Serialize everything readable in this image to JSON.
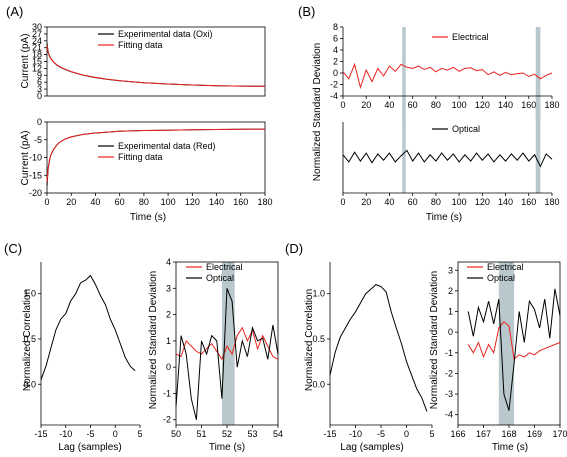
{
  "figure": {
    "panels": [
      {
        "id": "A",
        "label": "(A)",
        "xlabel": "Time (s)",
        "xticks": [
          "0",
          "20",
          "40",
          "60",
          "80",
          "100",
          "120",
          "140",
          "160",
          "180"
        ],
        "subplots": [
          {
            "ylabel": "Current (pA)",
            "yticks": [
              "0",
              "3",
              "6",
              "9",
              "12",
              "15",
              "18",
              "21",
              "24",
              "27",
              "30"
            ],
            "legend": [
              "Experimental data (Oxi)",
              "Fitting data"
            ]
          },
          {
            "ylabel": "Current (pA)",
            "yticks": [
              "-20",
              "-15",
              "-10",
              "-5",
              "0"
            ],
            "legend": [
              "Experimental data (Red)",
              "Fitting data"
            ]
          }
        ]
      },
      {
        "id": "B",
        "label": "(B)",
        "ylabel": "Normalized Standard Deviation",
        "xlabel": "Time (s)",
        "xticks": [
          "0",
          "20",
          "40",
          "60",
          "80",
          "100",
          "120",
          "140",
          "160",
          "180"
        ],
        "subplots": [
          {
            "yticks": [
              "-4",
              "-2",
              "0",
              "2",
              "4",
              "6",
              "8"
            ],
            "legend": [
              "Electrical"
            ]
          },
          {
            "legend": [
              "Optical"
            ]
          }
        ]
      },
      {
        "id": "C",
        "label": "(C)",
        "left": {
          "ylabel": "Normalized Correlation",
          "xlabel": "Lag (samples)",
          "xticks": [
            "-15",
            "-10",
            "-5",
            "0",
            "5"
          ],
          "yticks": [
            "0.0",
            "0.5",
            "1.0"
          ]
        },
        "right": {
          "ylabel": "Normalized Standard Deviation",
          "xlabel": "Time (s)",
          "xticks": [
            "50",
            "51",
            "52",
            "53",
            "54"
          ],
          "yticks": [
            "-2",
            "-1",
            "0",
            "1",
            "2",
            "3",
            "4"
          ],
          "legend": [
            "Electrical",
            "Optical"
          ]
        }
      },
      {
        "id": "D",
        "label": "(D)",
        "left": {
          "ylabel": "Normalized Correlation",
          "xlabel": "Lag (samples)",
          "xticks": [
            "-15",
            "-10",
            "-5",
            "0",
            "5"
          ],
          "yticks": [
            "0.0",
            "0.5",
            "1.0"
          ]
        },
        "right": {
          "ylabel": "Normalized Standard Deviation",
          "xlabel": "Time (s)",
          "xticks": [
            "166",
            "167",
            "168",
            "169",
            "170"
          ],
          "yticks": [
            "-4",
            "-3",
            "-2",
            "-1",
            "0",
            "1",
            "2",
            "3"
          ],
          "legend": [
            "Electrical",
            "Optical"
          ]
        }
      }
    ]
  },
  "colors": {
    "experimental": "#000000",
    "fitting": "#e8231f",
    "electrical": "#e8231f",
    "optical": "#000000",
    "highlight": "#b8c8cc"
  },
  "chart_data": [
    {
      "type": "line",
      "panel": "A-top",
      "xlabel": "Time (s)",
      "ylabel": "Current (pA)",
      "xlim": [
        0,
        180
      ],
      "ylim": [
        0,
        30
      ],
      "series": [
        {
          "name": "Experimental data (Oxi)",
          "x": [
            0,
            1,
            2,
            3,
            5,
            8,
            10,
            15,
            20,
            30,
            40,
            50,
            60,
            80,
            100,
            120,
            140,
            160,
            180
          ],
          "y": [
            23,
            19,
            17.5,
            16.5,
            15,
            13.5,
            12.8,
            11.5,
            10.5,
            9,
            8,
            7.2,
            6.6,
            5.8,
            5.2,
            4.8,
            4.5,
            4.3,
            4.2
          ]
        },
        {
          "name": "Fitting data",
          "x": [
            0,
            1,
            2,
            3,
            5,
            8,
            10,
            15,
            20,
            30,
            40,
            50,
            60,
            80,
            100,
            120,
            140,
            160,
            180
          ],
          "y": [
            22,
            18.8,
            17.3,
            16.4,
            15,
            13.6,
            12.9,
            11.6,
            10.6,
            9.1,
            8.1,
            7.3,
            6.7,
            5.8,
            5.2,
            4.8,
            4.5,
            4.3,
            4.2
          ]
        }
      ]
    },
    {
      "type": "line",
      "panel": "A-bottom",
      "xlabel": "Time (s)",
      "ylabel": "Current (pA)",
      "xlim": [
        0,
        180
      ],
      "ylim": [
        -20,
        0
      ],
      "series": [
        {
          "name": "Experimental data (Red)",
          "x": [
            0,
            1,
            2,
            3,
            5,
            8,
            10,
            15,
            20,
            30,
            40,
            60,
            80,
            100,
            120,
            140,
            160,
            180
          ],
          "y": [
            -18,
            -13,
            -11,
            -9.5,
            -8,
            -6.5,
            -5.8,
            -4.8,
            -4.2,
            -3.5,
            -3.1,
            -2.6,
            -2.4,
            -2.3,
            -2.2,
            -2.1,
            -2.05,
            -2
          ]
        },
        {
          "name": "Fitting data",
          "x": [
            0,
            1,
            2,
            3,
            5,
            8,
            10,
            15,
            20,
            30,
            40,
            60,
            80,
            100,
            120,
            140,
            160,
            180
          ],
          "y": [
            -17,
            -12.8,
            -10.8,
            -9.4,
            -7.9,
            -6.5,
            -5.8,
            -4.8,
            -4.2,
            -3.5,
            -3.1,
            -2.6,
            -2.4,
            -2.3,
            -2.2,
            -2.1,
            -2.05,
            -2
          ]
        }
      ]
    },
    {
      "type": "line",
      "panel": "B-top",
      "xlabel": "Time (s)",
      "ylabel": "Normalized Standard Deviation",
      "xlim": [
        0,
        180
      ],
      "ylim": [
        -4,
        8
      ],
      "highlight_x": [
        [
          51,
          54
        ],
        [
          166,
          170
        ]
      ],
      "series": [
        {
          "name": "Electrical",
          "x": [
            0,
            5,
            10,
            15,
            20,
            25,
            30,
            35,
            40,
            45,
            50,
            55,
            60,
            65,
            70,
            75,
            80,
            85,
            90,
            95,
            100,
            105,
            110,
            115,
            120,
            125,
            130,
            135,
            140,
            145,
            150,
            155,
            160,
            165,
            170,
            175,
            180
          ],
          "y": [
            0.2,
            -1,
            1.5,
            -2.5,
            0.5,
            -1.5,
            0.8,
            -0.5,
            1.2,
            0.3,
            1.5,
            1,
            0.8,
            1.2,
            0.6,
            1,
            0.2,
            0.8,
            0.5,
            1,
            0.3,
            0.8,
            0.9,
            0.4,
            0.6,
            -0.3,
            0.2,
            -0.4,
            0.1,
            -0.3,
            -0.1,
            0,
            -0.6,
            -0.2,
            -1,
            -0.4,
            0
          ]
        }
      ]
    },
    {
      "type": "line",
      "panel": "B-bottom",
      "xlabel": "Time (s)",
      "xlim": [
        0,
        180
      ],
      "highlight_x": [
        [
          51,
          54
        ],
        [
          166,
          170
        ]
      ],
      "series": [
        {
          "name": "Optical",
          "x": [
            0,
            5,
            10,
            15,
            20,
            25,
            30,
            35,
            40,
            45,
            50,
            55,
            60,
            65,
            70,
            75,
            80,
            85,
            90,
            95,
            100,
            105,
            110,
            115,
            120,
            125,
            130,
            135,
            140,
            145,
            150,
            155,
            160,
            165,
            170,
            175,
            180
          ],
          "y": [
            0.3,
            -0.5,
            0.6,
            -0.4,
            0.5,
            -0.6,
            0.4,
            -0.3,
            0.5,
            -0.5,
            0.2,
            0.8,
            -0.4,
            0.5,
            -0.5,
            0.3,
            -0.4,
            0.5,
            -0.3,
            0.4,
            -0.5,
            0.3,
            -0.4,
            0.5,
            -0.3,
            0.4,
            -0.5,
            0.3,
            -0.4,
            0.4,
            -0.3,
            0.5,
            -0.4,
            0.3,
            -1,
            0.4,
            -0.2
          ]
        }
      ]
    },
    {
      "type": "line",
      "panel": "C-left",
      "xlabel": "Lag (samples)",
      "ylabel": "Normalized Correlation",
      "xlim": [
        -15,
        5
      ],
      "ylim": [
        -0.45,
        1.35
      ],
      "series": [
        {
          "name": "",
          "x": [
            -15,
            -14,
            -13,
            -12,
            -11,
            -10,
            -9,
            -8,
            -7,
            -6,
            -5,
            -4,
            -3,
            -2,
            -1,
            0,
            1,
            2,
            3,
            4
          ],
          "y": [
            0.05,
            0.2,
            0.4,
            0.6,
            0.72,
            0.78,
            0.92,
            1.0,
            1.12,
            1.15,
            1.2,
            1.1,
            0.98,
            0.88,
            0.72,
            0.6,
            0.45,
            0.3,
            0.2,
            0.15
          ]
        }
      ]
    },
    {
      "type": "line",
      "panel": "C-right",
      "xlabel": "Time (s)",
      "ylabel": "Normalized Standard Deviation",
      "xlim": [
        50,
        54
      ],
      "ylim": [
        -2.2,
        4
      ],
      "highlight_x": [
        [
          51.8,
          52.3
        ]
      ],
      "series": [
        {
          "name": "Electrical",
          "x": [
            50,
            50.2,
            50.4,
            50.6,
            50.8,
            51,
            51.2,
            51.4,
            51.6,
            51.8,
            52,
            52.2,
            52.4,
            52.6,
            52.8,
            53,
            53.2,
            53.4,
            53.6,
            53.8,
            54
          ],
          "y": [
            0.5,
            0.4,
            1,
            0.8,
            0.6,
            0.5,
            0.7,
            0.9,
            0.6,
            0.3,
            0.8,
            0.5,
            1.2,
            1.5,
            1,
            1.4,
            0.7,
            1.2,
            0.8,
            0.4,
            0.3
          ]
        },
        {
          "name": "Optical",
          "x": [
            50,
            50.2,
            50.4,
            50.6,
            50.8,
            51,
            51.2,
            51.4,
            51.6,
            51.8,
            52,
            52.2,
            52.4,
            52.6,
            52.8,
            53,
            53.2,
            53.4,
            53.6,
            53.8,
            54
          ],
          "y": [
            -1.5,
            1.2,
            0.5,
            -1.2,
            -2,
            1,
            0.5,
            1.2,
            1,
            -1.2,
            3,
            2.5,
            0,
            1,
            0.4,
            1.5,
            1,
            1.1,
            0.3,
            1.6,
            0.5
          ]
        }
      ]
    },
    {
      "type": "line",
      "panel": "D-left",
      "xlabel": "Lag (samples)",
      "ylabel": "Normalized Correlation",
      "xlim": [
        -15,
        5
      ],
      "ylim": [
        -0.45,
        1.35
      ],
      "series": [
        {
          "name": "",
          "x": [
            -15,
            -14,
            -13,
            -12,
            -11,
            -10,
            -9,
            -8,
            -7,
            -6,
            -5,
            -4,
            -3,
            -2,
            -1,
            0,
            1,
            2,
            3,
            4
          ],
          "y": [
            0.1,
            0.35,
            0.52,
            0.62,
            0.72,
            0.8,
            0.9,
            1.0,
            1.05,
            1.1,
            1.08,
            1.02,
            0.8,
            0.62,
            0.45,
            0.25,
            0.1,
            -0.05,
            -0.15,
            -0.3
          ]
        }
      ]
    },
    {
      "type": "line",
      "panel": "D-right",
      "xlabel": "Time (s)",
      "ylabel": "Normalized Standard Deviation",
      "xlim": [
        166,
        170
      ],
      "ylim": [
        -4.5,
        3.4
      ],
      "highlight_x": [
        [
          167.6,
          168.2
        ]
      ],
      "series": [
        {
          "name": "Electrical",
          "x": [
            166.4,
            166.6,
            166.8,
            167,
            167.2,
            167.4,
            167.6,
            167.8,
            168,
            168.2,
            168.4,
            168.6,
            168.8,
            169,
            169.2,
            169.4,
            169.6,
            169.8,
            170
          ],
          "y": [
            -0.6,
            -1,
            -0.5,
            -1.2,
            -0.6,
            -1,
            0.2,
            0.5,
            0.3,
            -1.3,
            -1.1,
            -1.2,
            -1,
            -1.1,
            -0.9,
            -0.8,
            -0.7,
            -0.6,
            -0.5
          ]
        },
        {
          "name": "Optical",
          "x": [
            166.4,
            166.6,
            166.8,
            167,
            167.2,
            167.4,
            167.6,
            167.8,
            168,
            168.2,
            168.4,
            168.6,
            168.8,
            169,
            169.2,
            169.4,
            169.6,
            169.8,
            170
          ],
          "y": [
            1,
            -0.2,
            1.2,
            0.5,
            1.5,
            0.4,
            1.6,
            -3,
            -3.8,
            -1.5,
            1,
            -0.5,
            1.5,
            1.1,
            0.2,
            1.6,
            -0.3,
            2.1,
            0.8
          ]
        }
      ]
    }
  ]
}
